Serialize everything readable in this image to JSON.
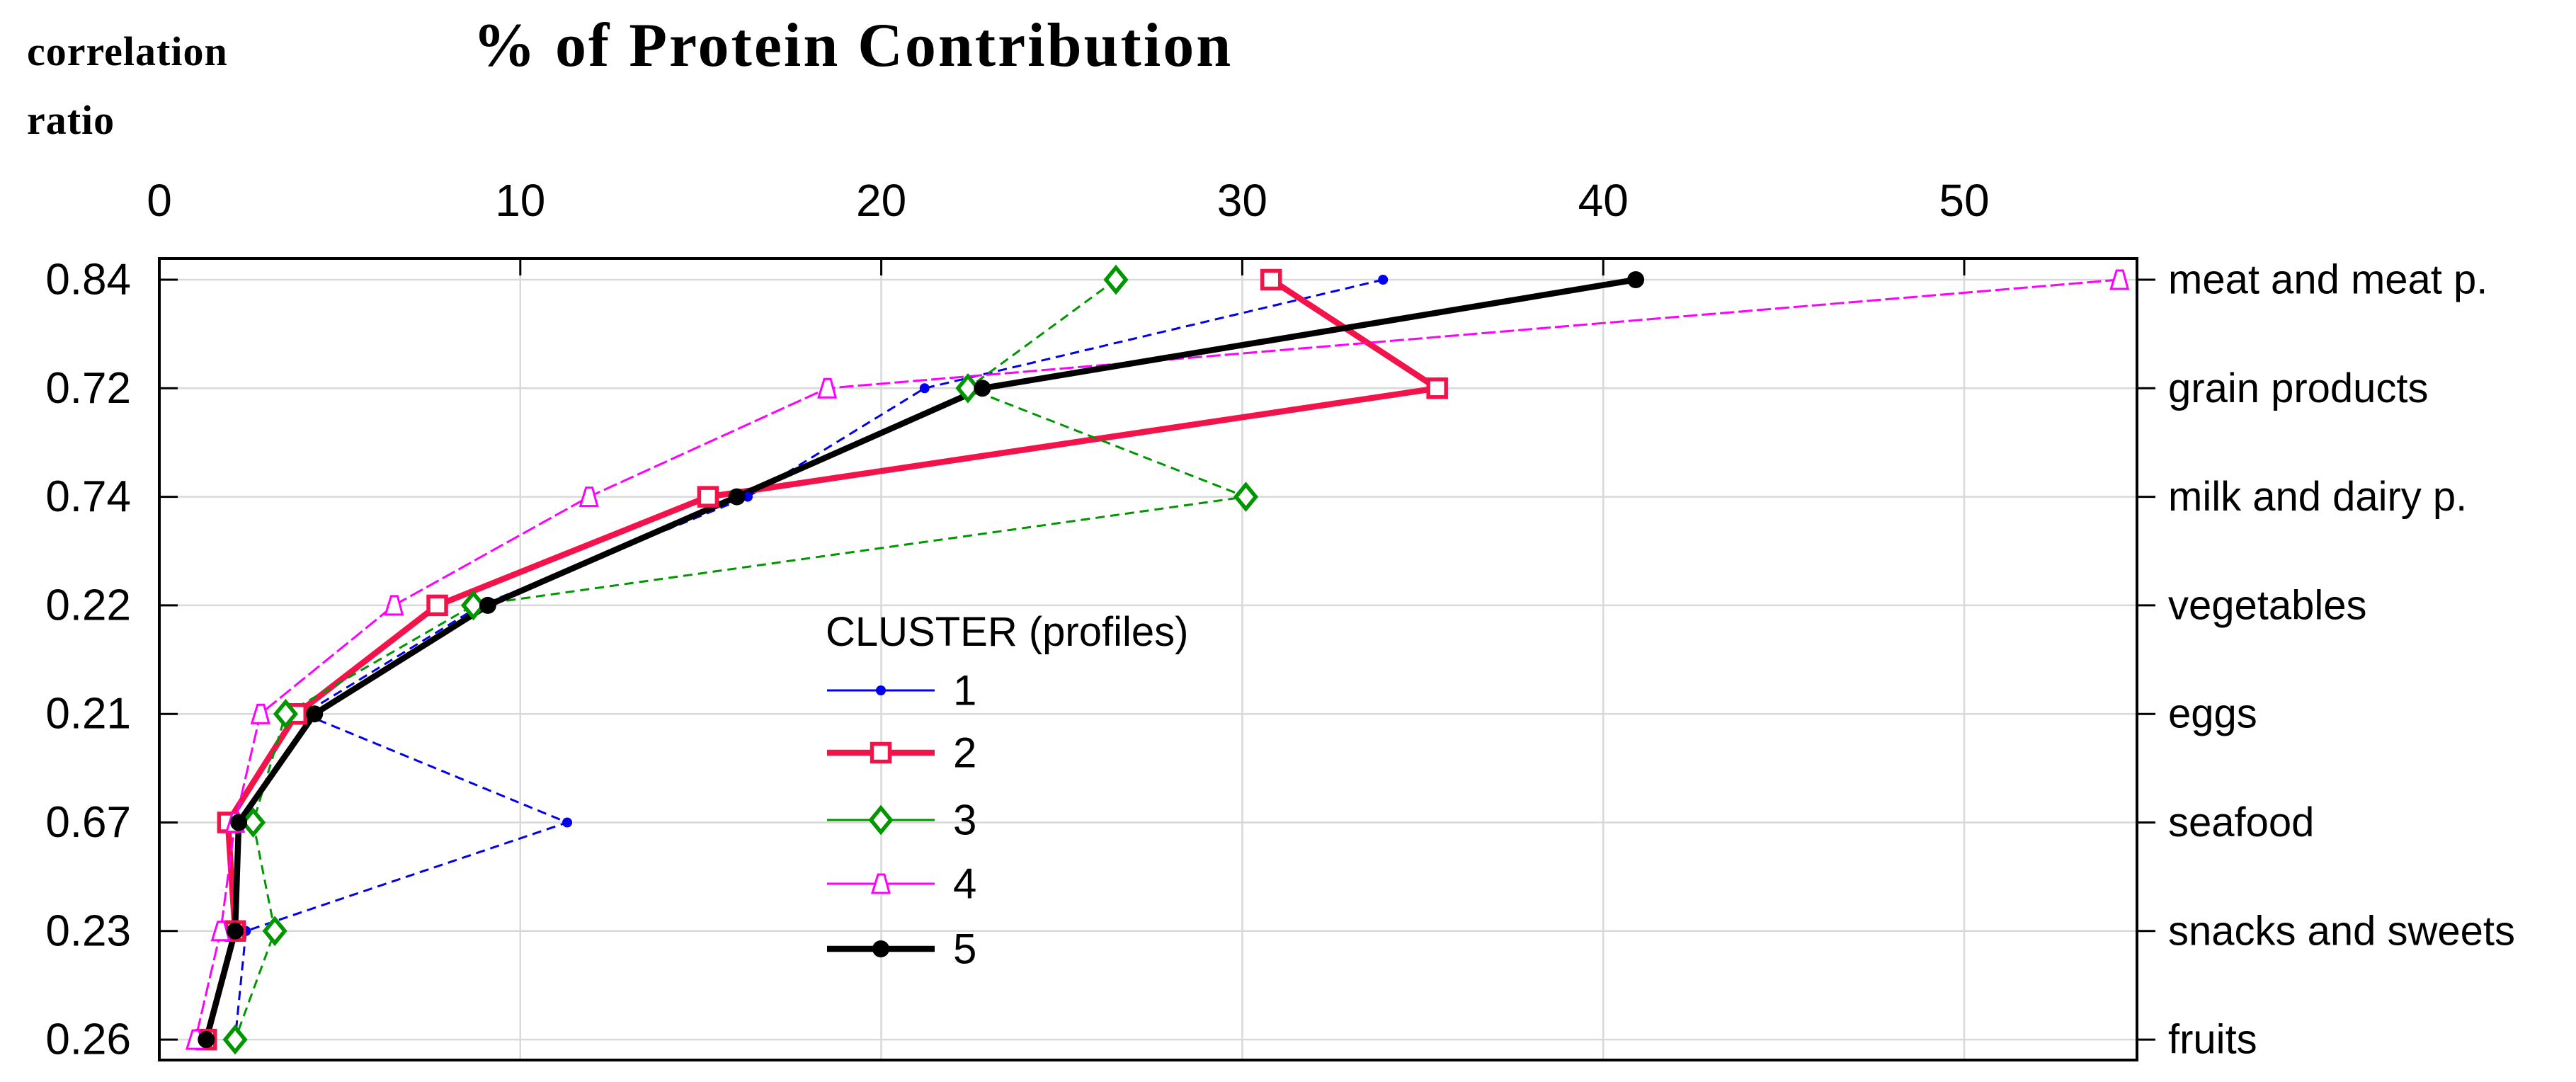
{
  "y_axis_title": {
    "line1": "correlation",
    "line2": "ratio"
  },
  "chart_data": {
    "type": "line",
    "title": "% of Protein Contribution",
    "orientation": "horizontal-category-rows",
    "x_axis": {
      "ticks": [
        "0",
        "10",
        "20",
        "30",
        "40",
        "50"
      ],
      "tick_values": [
        0,
        10,
        20,
        30,
        40,
        50
      ],
      "range": [
        0,
        54.8
      ],
      "grid": true
    },
    "y_axis_left_label": "correlation ratio",
    "correlation_ratios": [
      "0.84",
      "0.72",
      "0.74",
      "0.22",
      "0.21",
      "0.67",
      "0.23",
      "0.26"
    ],
    "categories": [
      "meat and meat p.",
      "grain products",
      "milk and dairy p.",
      "vegetables",
      "eggs",
      "seafood",
      "snacks and sweets",
      "fruits"
    ],
    "legend": {
      "title": "CLUSTER (profiles)",
      "position": "center-inside"
    },
    "series": [
      {
        "name": "1",
        "color": "#0000ee",
        "marker": "filled-circle-small",
        "line_style": "thin-dashed",
        "values": [
          33.9,
          21.2,
          16.3,
          8.9,
          4.0,
          11.3,
          2.4,
          2.1
        ]
      },
      {
        "name": "2",
        "color": "#f3134b",
        "marker": "open-square",
        "line_style": "thick-solid",
        "values": [
          30.8,
          35.4,
          15.2,
          7.7,
          3.8,
          1.9,
          2.1,
          1.3
        ]
      },
      {
        "name": "3",
        "color": "#009600",
        "marker": "open-diamond",
        "line_style": "thin-dashed",
        "values": [
          26.5,
          22.4,
          30.1,
          8.7,
          3.5,
          2.6,
          3.2,
          2.1
        ]
      },
      {
        "name": "4",
        "color": "#ff00ff",
        "marker": "open-triangle",
        "line_style": "thin-dashed",
        "values": [
          54.3,
          18.5,
          11.9,
          6.5,
          2.8,
          2.1,
          1.7,
          1.0
        ]
      },
      {
        "name": "5",
        "color": "#000000",
        "marker": "filled-circle",
        "line_style": "thick-solid",
        "values": [
          40.9,
          22.8,
          16.0,
          9.1,
          4.3,
          2.2,
          2.1,
          1.3
        ]
      }
    ],
    "colors": {
      "grid": "#d9d9d9",
      "axis": "#000000"
    }
  }
}
